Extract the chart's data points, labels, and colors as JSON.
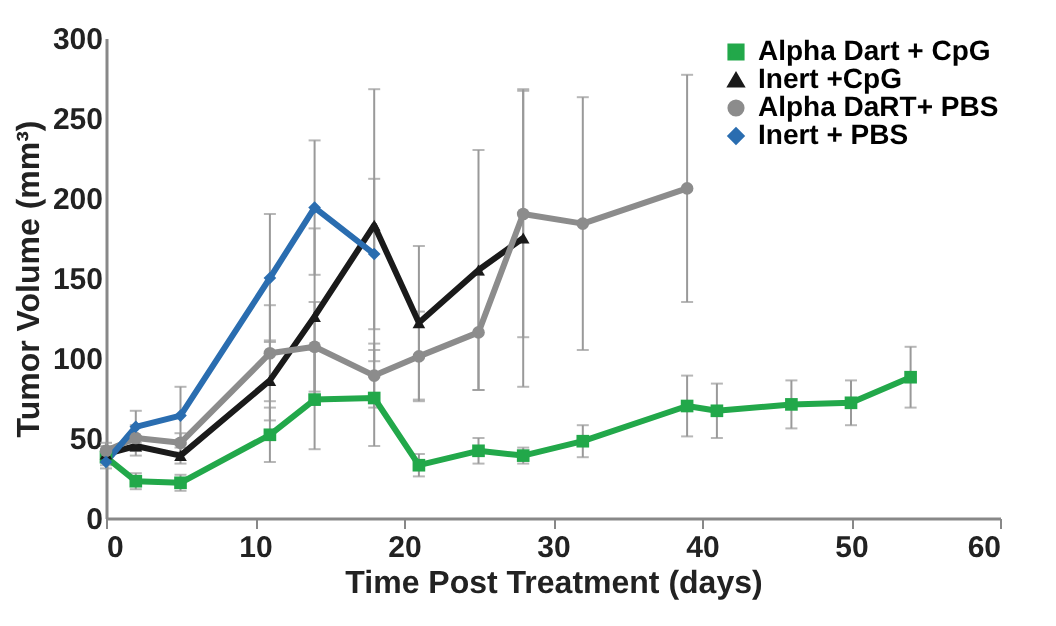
{
  "chart_data": {
    "type": "line",
    "xlabel": "Time Post Treatment (days)",
    "ylabel": "Tumor Volume (mm³)",
    "xlim": [
      0,
      60
    ],
    "xticks": [
      0,
      10,
      20,
      30,
      40,
      50,
      60
    ],
    "ylim": [
      0,
      300
    ],
    "yticks": [
      0,
      50,
      100,
      150,
      200,
      250,
      300
    ],
    "grid": false,
    "legend": "top right",
    "series": [
      {
        "name": "Alpha Dart + CpG",
        "color": "#22a84a",
        "marker": "square",
        "x": [
          0,
          2,
          5,
          11,
          14,
          18,
          21,
          25,
          28,
          32,
          39,
          41,
          46,
          50,
          54
        ],
        "values": [
          38,
          23,
          22,
          52,
          74,
          75,
          33,
          42,
          39,
          48,
          70,
          67,
          71,
          72,
          88
        ],
        "errors": [
          5,
          5,
          5,
          17,
          31,
          30,
          7,
          8,
          5,
          10,
          19,
          17,
          15,
          14,
          19
        ]
      },
      {
        "name": "Inert +CpG",
        "color": "#1a1a1a",
        "marker": "triangle",
        "x": [
          0,
          2,
          5,
          11,
          14,
          18,
          21,
          25,
          28
        ],
        "values": [
          40,
          45,
          39,
          86,
          126,
          183,
          122,
          155,
          175
        ],
        "errors": [
          5,
          6,
          5,
          25,
          55,
          85,
          48,
          75,
          93
        ]
      },
      {
        "name": "Alpha DaRT+ PBS",
        "color": "#8c8c8c",
        "marker": "circle",
        "x": [
          0,
          2,
          5,
          11,
          14,
          18,
          21,
          25,
          28,
          32,
          39
        ],
        "values": [
          42,
          50,
          47,
          103,
          107,
          89,
          101,
          116,
          190,
          184,
          206
        ],
        "errors": [
          5,
          8,
          6,
          30,
          28,
          20,
          28,
          36,
          77,
          79,
          71
        ]
      },
      {
        "name": "Inert + PBS",
        "color": "#2a6db0",
        "marker": "diamond",
        "x": [
          0,
          2,
          5,
          11,
          14,
          18
        ],
        "values": [
          35,
          57,
          64,
          150,
          194,
          165
        ],
        "errors": [
          4,
          10,
          18,
          40,
          42,
          47
        ]
      }
    ]
  }
}
